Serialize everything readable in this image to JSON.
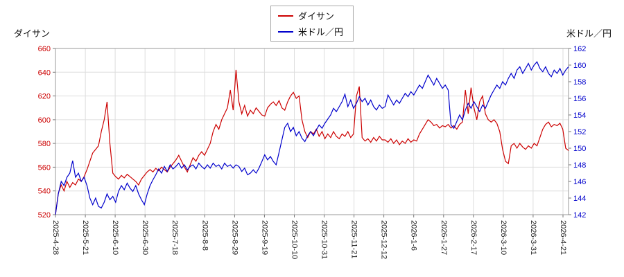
{
  "chart_data": {
    "type": "line",
    "title": "",
    "left_axis": {
      "label": "ダイサン",
      "min": 520,
      "max": 660,
      "ticks": [
        660,
        640,
        620,
        600,
        580,
        560,
        540,
        520
      ],
      "color": "#cc0000"
    },
    "right_axis": {
      "label": "米ドル／円",
      "min": 142,
      "max": 162,
      "ticks": [
        162,
        160,
        158,
        156,
        154,
        152,
        150,
        148,
        146,
        144,
        142
      ],
      "color": "#0000cc"
    },
    "x_ticks": [
      "2025-4-28",
      "2025-5-21",
      "2025-6-10",
      "2025-6-30",
      "2025-7-18",
      "2025-8-8",
      "2025-8-29",
      "2025-9-19",
      "2025-10-10",
      "2025-10-31",
      "2025-11-21",
      "2025-12-12",
      "2026-1-6",
      "2026-1-27",
      "2026-2-17",
      "2026-3-10",
      "2026-3-31",
      "2026-4-21"
    ],
    "grid": true,
    "legend": {
      "position": "top-center",
      "entries": [
        {
          "label": "ダイサン",
          "color": "#cc0000"
        },
        {
          "label": "米ドル／円",
          "color": "#0000cc"
        }
      ]
    },
    "series": [
      {
        "id": "daisan",
        "name": "ダイサン",
        "axis": "left",
        "color": "#cc0000",
        "values": [
          520,
          538,
          545,
          540,
          548,
          543,
          547,
          545,
          550,
          548,
          552,
          558,
          565,
          572,
          575,
          578,
          590,
          600,
          615,
          580,
          555,
          552,
          550,
          553,
          551,
          554,
          552,
          550,
          548,
          545,
          550,
          553,
          556,
          558,
          556,
          559,
          557,
          560,
          558,
          556,
          560,
          563,
          566,
          570,
          565,
          560,
          556,
          562,
          568,
          565,
          570,
          573,
          570,
          575,
          580,
          590,
          596,
          592,
          600,
          605,
          610,
          625,
          608,
          642,
          615,
          605,
          612,
          603,
          608,
          605,
          610,
          607,
          604,
          603,
          610,
          613,
          615,
          612,
          616,
          610,
          608,
          615,
          620,
          623,
          618,
          620,
          600,
          590,
          585,
          590,
          588,
          592,
          586,
          590,
          584,
          588,
          585,
          590,
          586,
          584,
          588,
          586,
          590,
          585,
          588,
          620,
          628,
          585,
          582,
          584,
          581,
          585,
          582,
          586,
          583,
          583,
          581,
          584,
          580,
          583,
          579,
          582,
          580,
          584,
          581,
          583,
          582,
          588,
          592,
          596,
          600,
          598,
          595,
          596,
          593,
          595,
          594,
          596,
          593,
          595,
          592,
          596,
          598,
          625,
          605,
          627,
          610,
          600,
          615,
          620,
          605,
          600,
          598,
          600,
          597,
          590,
          575,
          565,
          563,
          578,
          580,
          576,
          580,
          577,
          575,
          578,
          576,
          580,
          578,
          585,
          592,
          596,
          598,
          594,
          596,
          595,
          597,
          592,
          576,
          574
        ]
      },
      {
        "id": "usdjpy",
        "name": "米ドル／円",
        "axis": "right",
        "color": "#0000cc",
        "values": [
          142,
          144.5,
          146,
          145.5,
          146.5,
          147,
          148.5,
          146.5,
          147,
          146,
          146.5,
          145.5,
          144,
          143.2,
          144,
          143,
          142.8,
          143.5,
          144.5,
          143.8,
          144.2,
          143.5,
          144.8,
          145.5,
          145,
          145.8,
          145.2,
          144.8,
          145.5,
          144.5,
          143.8,
          143.2,
          144.5,
          145.5,
          146.2,
          146.8,
          147.5,
          147,
          147.8,
          147.2,
          148,
          147.5,
          147.8,
          148.2,
          147.6,
          148,
          147.4,
          147.8,
          148,
          147.5,
          148.2,
          147.8,
          147.5,
          148,
          147.6,
          148.2,
          147.8,
          148,
          147.5,
          148.2,
          147.8,
          148,
          147.6,
          148,
          147.8,
          147.2,
          147.6,
          146.8,
          147,
          147.4,
          147,
          147.6,
          148.4,
          149.2,
          148.6,
          149,
          148.4,
          148,
          149.5,
          151,
          152.5,
          153,
          152,
          152.5,
          151.5,
          152,
          151.2,
          150.8,
          151.5,
          152,
          151.5,
          152.2,
          152.8,
          152.4,
          153,
          153.5,
          154,
          154.8,
          154.4,
          155,
          155.6,
          156.5,
          155,
          155.8,
          154.8,
          155.4,
          156.2,
          155.6,
          156,
          155.2,
          155.8,
          155,
          154.6,
          155.2,
          154.8,
          155,
          156.4,
          155.8,
          155.2,
          155.8,
          155.4,
          156,
          156.6,
          156.2,
          156.8,
          156.4,
          157,
          157.6,
          157.2,
          158,
          158.8,
          158.2,
          157.6,
          158.4,
          157.8,
          157.2,
          157.6,
          157,
          152.8,
          152.4,
          153.2,
          154,
          153.4,
          154.6,
          155.4,
          154.8,
          155.6,
          155,
          154.4,
          155.2,
          154.8,
          155.6,
          156.4,
          157,
          157.6,
          157.2,
          158,
          157.6,
          158.4,
          159,
          158.4,
          159.4,
          159.8,
          159,
          159.6,
          160.2,
          159.4,
          160,
          160.4,
          159.6,
          159.2,
          159.8,
          159,
          158.6,
          159.4,
          159,
          159.6,
          158.8,
          159.4,
          159.8
        ]
      }
    ]
  }
}
